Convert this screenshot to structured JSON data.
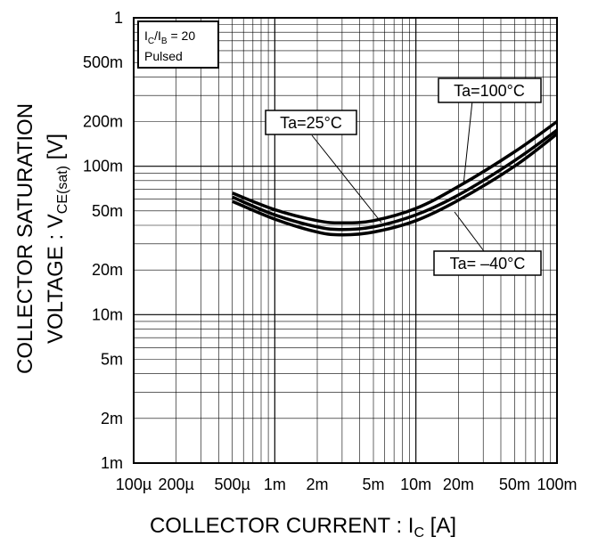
{
  "chart_data": {
    "type": "line",
    "x_scale": "log",
    "y_scale": "log",
    "xlim": [
      0.0001,
      0.1
    ],
    "ylim": [
      0.001,
      1
    ],
    "grid": true,
    "xlabel": {
      "main": "COLLECTOR CURRENT : I",
      "sub": "C",
      "unit": " [A]"
    },
    "ylabel": {
      "line1": "COLLECTOR SATURATION",
      "line2_main": "VOLTAGE : V",
      "line2_sub": "CE(sat)",
      "line2_unit": " [V]"
    },
    "x_ticks": [
      {
        "value": 0.0001,
        "label": "100µ"
      },
      {
        "value": 0.0002,
        "label": "200µ"
      },
      {
        "value": 0.0005,
        "label": "500µ"
      },
      {
        "value": 0.001,
        "label": "1m"
      },
      {
        "value": 0.002,
        "label": "2m"
      },
      {
        "value": 0.005,
        "label": "5m"
      },
      {
        "value": 0.01,
        "label": "10m"
      },
      {
        "value": 0.02,
        "label": "20m"
      },
      {
        "value": 0.05,
        "label": "50m"
      },
      {
        "value": 0.1,
        "label": "100m"
      }
    ],
    "y_ticks": [
      {
        "value": 1,
        "label": "1"
      },
      {
        "value": 0.5,
        "label": "500m"
      },
      {
        "value": 0.2,
        "label": "200m"
      },
      {
        "value": 0.1,
        "label": "100m"
      },
      {
        "value": 0.05,
        "label": "50m"
      },
      {
        "value": 0.02,
        "label": "20m"
      },
      {
        "value": 0.01,
        "label": "10m"
      },
      {
        "value": 0.005,
        "label": "5m"
      },
      {
        "value": 0.002,
        "label": "2m"
      },
      {
        "value": 0.001,
        "label": "1m"
      }
    ],
    "conditions": {
      "line1_main": "I",
      "line1_sub1": "C",
      "line1_mid": "/I",
      "line1_sub2": "B",
      "line1_tail": " = 20",
      "line2": "Pulsed"
    },
    "series": [
      {
        "name": "Ta=100°C",
        "points": [
          [
            0.0005,
            0.066
          ],
          [
            0.001,
            0.051
          ],
          [
            0.002,
            0.043
          ],
          [
            0.003,
            0.0415
          ],
          [
            0.005,
            0.043
          ],
          [
            0.01,
            0.052
          ],
          [
            0.02,
            0.073
          ],
          [
            0.05,
            0.125
          ],
          [
            0.1,
            0.2
          ]
        ]
      },
      {
        "name": "Ta=25°C",
        "points": [
          [
            0.0005,
            0.062
          ],
          [
            0.001,
            0.047
          ],
          [
            0.002,
            0.039
          ],
          [
            0.003,
            0.0375
          ],
          [
            0.005,
            0.039
          ],
          [
            0.01,
            0.047
          ],
          [
            0.02,
            0.064
          ],
          [
            0.05,
            0.109
          ],
          [
            0.1,
            0.175
          ]
        ]
      },
      {
        "name": "Ta= –40°C",
        "points": [
          [
            0.0005,
            0.058
          ],
          [
            0.001,
            0.044
          ],
          [
            0.002,
            0.036
          ],
          [
            0.003,
            0.0345
          ],
          [
            0.005,
            0.036
          ],
          [
            0.01,
            0.043
          ],
          [
            0.02,
            0.059
          ],
          [
            0.05,
            0.1
          ],
          [
            0.1,
            0.165
          ]
        ]
      }
    ],
    "annotations": [
      {
        "text": "Ta=100°C",
        "series": "Ta=100°C"
      },
      {
        "text": "Ta=25°C",
        "series": "Ta=25°C"
      },
      {
        "text": "Ta= –40°C",
        "series": "Ta= –40°C"
      }
    ]
  }
}
